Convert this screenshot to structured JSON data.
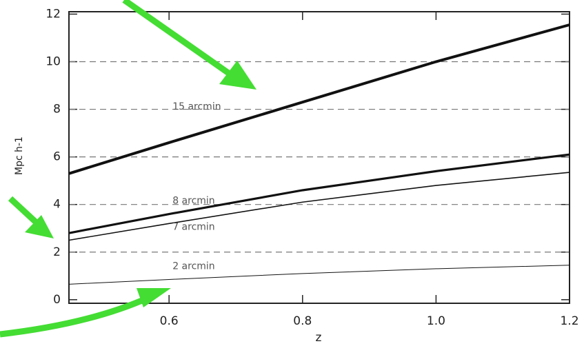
{
  "chart_data": {
    "type": "line",
    "x_label": "z",
    "y_label": "Mpc h-1",
    "xlim": [
      0.45,
      1.2
    ],
    "ylim": [
      -0.15,
      12.1
    ],
    "xticks": [
      0.6,
      0.8,
      {
        "value": 1,
        "label": "1.0"
      },
      1.2
    ],
    "yticks": [
      0,
      2,
      4,
      6,
      8,
      10,
      12
    ],
    "grid": true,
    "x": [
      0.45,
      0.6,
      0.8,
      1.0,
      1.2
    ],
    "series": [
      {
        "name": "15 arcmin",
        "color": "#111111",
        "values": [
          5.3,
          6.6,
          8.3,
          10.0,
          11.55
        ]
      },
      {
        "name": "8 arcmin",
        "color": "#111111",
        "values": [
          2.8,
          3.6,
          4.6,
          5.4,
          6.1
        ]
      },
      {
        "name": "7 arcmin",
        "color": "#111111",
        "values": [
          2.5,
          3.2,
          4.1,
          4.8,
          5.35
        ]
      },
      {
        "name": "2 arcmin",
        "color": "#111111",
        "values": [
          0.65,
          0.85,
          1.1,
          1.3,
          1.45
        ]
      }
    ]
  }
}
